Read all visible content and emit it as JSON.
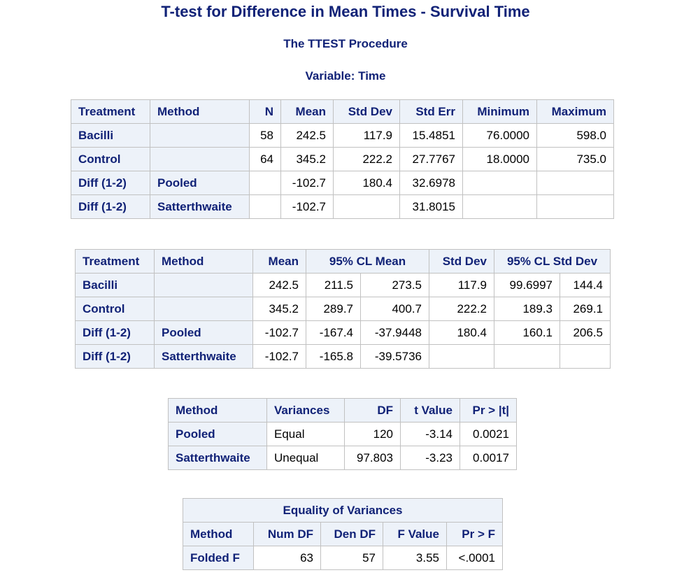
{
  "header": {
    "title": "T-test for Difference in Mean Times - Survival Time",
    "procedure": "The TTEST Procedure",
    "variable": "Variable: Time"
  },
  "stats_table": {
    "columns": [
      "Treatment",
      "Method",
      "N",
      "Mean",
      "Std Dev",
      "Std Err",
      "Minimum",
      "Maximum"
    ],
    "rows": [
      [
        "Bacilli",
        "",
        "58",
        "242.5",
        "117.9",
        "15.4851",
        "76.0000",
        "598.0"
      ],
      [
        "Control",
        "",
        "64",
        "345.2",
        "222.2",
        "27.7767",
        "18.0000",
        "735.0"
      ],
      [
        "Diff (1-2)",
        "Pooled",
        "",
        "-102.7",
        "180.4",
        "32.6978",
        "",
        ""
      ],
      [
        "Diff (1-2)",
        "Satterthwaite",
        "",
        "-102.7",
        "",
        "31.8015",
        "",
        ""
      ]
    ]
  },
  "cl_table": {
    "columns": [
      "Treatment",
      "Method",
      "Mean",
      "95% CL Mean",
      "Std Dev",
      "95% CL Std Dev"
    ],
    "rows": [
      [
        "Bacilli",
        "",
        "242.5",
        "211.5",
        "273.5",
        "117.9",
        "99.6997",
        "144.4"
      ],
      [
        "Control",
        "",
        "345.2",
        "289.7",
        "400.7",
        "222.2",
        "189.3",
        "269.1"
      ],
      [
        "Diff (1-2)",
        "Pooled",
        "-102.7",
        "-167.4",
        "-37.9448",
        "180.4",
        "160.1",
        "206.5"
      ],
      [
        "Diff (1-2)",
        "Satterthwaite",
        "-102.7",
        "-165.8",
        "-39.5736",
        "",
        "",
        ""
      ]
    ]
  },
  "ttest_table": {
    "columns": [
      "Method",
      "Variances",
      "DF",
      "t Value",
      "Pr > |t|"
    ],
    "rows": [
      [
        "Pooled",
        "Equal",
        "120",
        "-3.14",
        "0.0021"
      ],
      [
        "Satterthwaite",
        "Unequal",
        "97.803",
        "-3.23",
        "0.0017"
      ]
    ]
  },
  "eqvar_table": {
    "caption": "Equality of Variances",
    "columns": [
      "Method",
      "Num DF",
      "Den DF",
      "F Value",
      "Pr > F"
    ],
    "rows": [
      [
        "Folded F",
        "63",
        "57",
        "3.55",
        "<.0001"
      ]
    ]
  }
}
